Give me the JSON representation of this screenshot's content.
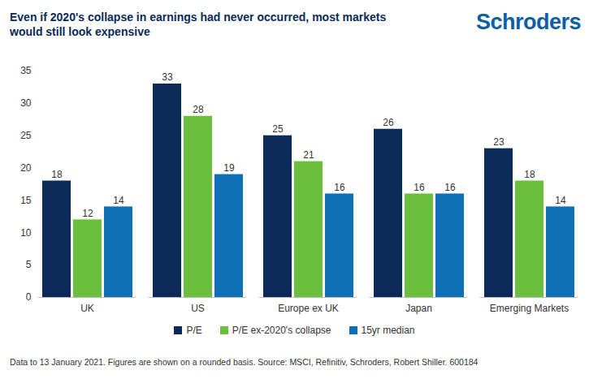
{
  "chart_data": {
    "type": "bar",
    "title": "Even if 2020's collapse in earnings had never occurred, most markets would still look expensive",
    "brand": "Schroders",
    "caption": "Data to 13 January 2021. Figures are shown on a rounded basis. Source: MSCI, Refinitiv, Schroders, Robert Shiller. 600184",
    "categories": [
      "UK",
      "US",
      "Europe ex UK",
      "Japan",
      "Emerging Markets"
    ],
    "series": [
      {
        "name": "P/E",
        "color": "#0b2a57",
        "values": [
          18,
          33,
          25,
          26,
          23
        ]
      },
      {
        "name": "P/E ex-2020's collapse",
        "color": "#6abf3f",
        "values": [
          12,
          28,
          21,
          16,
          18
        ]
      },
      {
        "name": "15yr median",
        "color": "#0f6fb4",
        "values": [
          14,
          19,
          16,
          16,
          14
        ]
      }
    ],
    "ylim": [
      0,
      35
    ],
    "yticks": [
      0,
      5,
      10,
      15,
      20,
      25,
      30,
      35
    ],
    "grid": false,
    "data_labels": true,
    "legend": "bottom"
  }
}
